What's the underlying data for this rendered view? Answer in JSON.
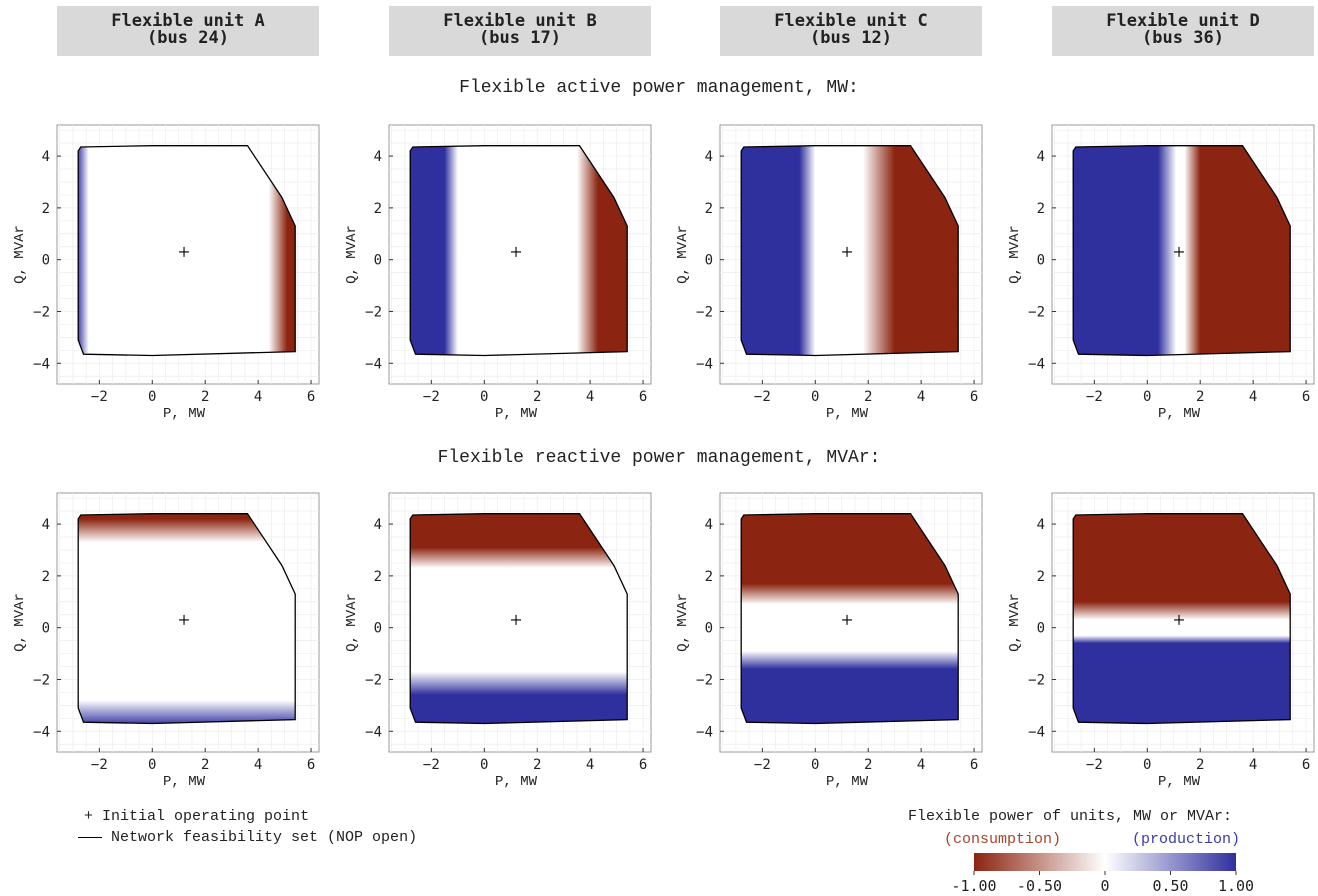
{
  "units": [
    {
      "name": "Flexible unit A",
      "bus": "(bus 24)"
    },
    {
      "name": "Flexible unit B",
      "bus": "(bus 17)"
    },
    {
      "name": "Flexible unit C",
      "bus": "(bus 12)"
    },
    {
      "name": "Flexible unit D",
      "bus": "(bus 36)"
    }
  ],
  "rows": {
    "active_title": "Flexible active power management, MW:",
    "reactive_title": "Flexible reactive power management, MVAr:"
  },
  "axes": {
    "xlabel": "P, MW",
    "ylabel": "Q, MVAr",
    "xticks": [
      -2,
      0,
      2,
      4,
      6
    ],
    "yticks": [
      -4,
      -2,
      0,
      2,
      4
    ],
    "xlim": [
      -3.6,
      6.3
    ],
    "ylim": [
      -4.8,
      5.2
    ]
  },
  "legend": {
    "marker_label": "Initial operating point",
    "line_label": "Network feasibility set (NOP open)"
  },
  "colorbar": {
    "title": "Flexible power of units, MW or MVAr:",
    "consumption_label": "(consumption)",
    "production_label": "(production)",
    "consumption_color": "#8b2410",
    "production_color": "#2f2f9e",
    "tick_labels": [
      "-1.00",
      "-0.50",
      "0",
      "0.50",
      "1.00"
    ],
    "range": [
      -1.0,
      1.0
    ]
  },
  "chart_data": {
    "type": "heatmap",
    "feasibility_boundary": [
      [
        -2.7,
        4.35
      ],
      [
        0,
        4.4
      ],
      [
        3.6,
        4.4
      ],
      [
        4.9,
        2.4
      ],
      [
        5.4,
        1.3
      ],
      [
        5.4,
        -3.55
      ],
      [
        0,
        -3.7
      ],
      [
        -2.6,
        -3.65
      ],
      [
        -2.8,
        -3.1
      ],
      [
        -2.8,
        4.2
      ]
    ],
    "initial_operating_point": {
      "P": 1.2,
      "Q": 0.3
    },
    "panels": [
      {
        "unit": "A",
        "quantity": "active",
        "direction": "P",
        "stops": [
          [
            -2.8,
            0.9
          ],
          [
            -2.4,
            0
          ],
          [
            4.4,
            0
          ],
          [
            5.1,
            -1
          ]
        ]
      },
      {
        "unit": "B",
        "quantity": "active",
        "direction": "P",
        "stops": [
          [
            -1.5,
            1
          ],
          [
            -1.0,
            0
          ],
          [
            3.5,
            0
          ],
          [
            4.3,
            -1
          ]
        ]
      },
      {
        "unit": "C",
        "quantity": "active",
        "direction": "P",
        "stops": [
          [
            -0.6,
            1
          ],
          [
            0.0,
            0
          ],
          [
            1.8,
            0
          ],
          [
            3.0,
            -1
          ]
        ]
      },
      {
        "unit": "D",
        "quantity": "active",
        "direction": "P",
        "stops": [
          [
            0.4,
            1
          ],
          [
            1.1,
            0
          ],
          [
            1.4,
            0
          ],
          [
            2.0,
            -1
          ]
        ]
      },
      {
        "unit": "A",
        "quantity": "reactive",
        "direction": "Q",
        "stops": [
          [
            -3.8,
            1
          ],
          [
            -2.8,
            0
          ],
          [
            3.3,
            0
          ],
          [
            4.2,
            -1
          ]
        ]
      },
      {
        "unit": "B",
        "quantity": "reactive",
        "direction": "Q",
        "stops": [
          [
            -2.6,
            1
          ],
          [
            -1.7,
            0
          ],
          [
            2.3,
            0
          ],
          [
            3.1,
            -1
          ]
        ]
      },
      {
        "unit": "C",
        "quantity": "reactive",
        "direction": "Q",
        "stops": [
          [
            -1.6,
            1
          ],
          [
            -0.9,
            0
          ],
          [
            0.9,
            0
          ],
          [
            1.7,
            -1
          ]
        ]
      },
      {
        "unit": "D",
        "quantity": "reactive",
        "direction": "Q",
        "stops": [
          [
            -0.6,
            1
          ],
          [
            -0.3,
            0
          ],
          [
            0.3,
            0
          ],
          [
            1.0,
            -1
          ]
        ]
      }
    ]
  }
}
